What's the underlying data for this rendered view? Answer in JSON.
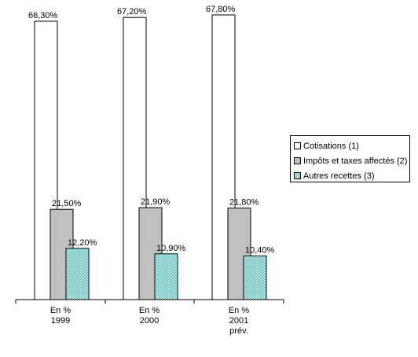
{
  "chart_data": {
    "type": "bar",
    "categories": [
      [
        "En %",
        "1999"
      ],
      [
        "En %",
        "2000"
      ],
      [
        "En %",
        "2001",
        "prév."
      ]
    ],
    "series": [
      {
        "name": "Cotisations (1)",
        "values": [
          66.3,
          67.2,
          67.8
        ],
        "labels": [
          "66,30%",
          "67,20%",
          "67,80%"
        ],
        "color": "#ffffff",
        "pattern": "solid"
      },
      {
        "name": "Impôts et taxes affectés (2)",
        "values": [
          21.5,
          21.9,
          21.8
        ],
        "labels": [
          "21,50%",
          "21,90%",
          "21,80%"
        ],
        "color": "#c0c0c0",
        "pattern": "solid"
      },
      {
        "name": "Autres recettes (3)",
        "values": [
          12.2,
          10.9,
          10.4
        ],
        "labels": [
          "12,20%",
          "10,90%",
          "10,40%"
        ],
        "color": "#33cccc",
        "pattern": "checker"
      }
    ],
    "ylim": [
      0,
      67.8
    ],
    "grid": false,
    "legend_position": "right"
  }
}
